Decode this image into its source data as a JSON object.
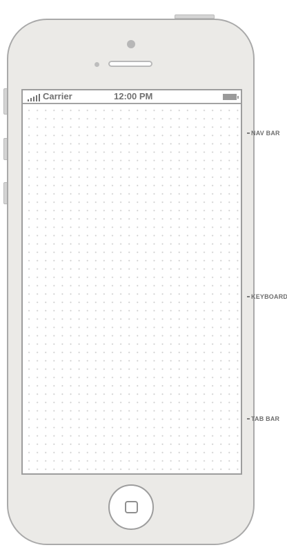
{
  "status_bar": {
    "carrier": "Carrier",
    "time": "12:00 PM"
  },
  "annotations": {
    "nav_bar": "NAV BAR",
    "keyboard": "KEYBOARD",
    "tab_bar": "TAB BAR"
  },
  "icons": {
    "signal": "signal-bars-icon",
    "battery": "battery-icon",
    "home": "home-button-square-icon"
  }
}
